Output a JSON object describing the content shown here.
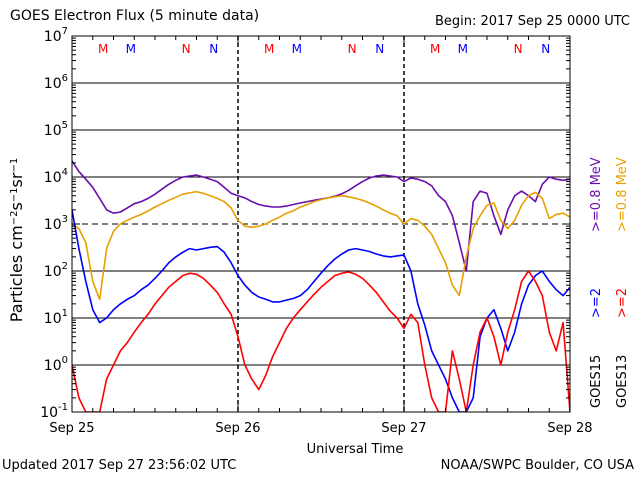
{
  "header": {
    "title": "GOES Electron Flux (5 minute data)",
    "begin": "Begin: 2017 Sep 25 0000 UTC"
  },
  "footer": {
    "updated": "Updated 2017 Sep 27 23:56:02 UTC",
    "credit": "NOAA/SWPC Boulder, CO USA"
  },
  "chart_data": {
    "type": "line",
    "title": "GOES Electron Flux (5 minute data)",
    "xlabel": "Universal Time",
    "ylabel": "Particles cm⁻²s⁻¹sr⁻¹",
    "yscale": "log",
    "ylim_exp": [
      -1,
      7
    ],
    "xlim_hours": [
      0,
      72
    ],
    "x_ticks": [
      {
        "hour": 0,
        "label": "Sep 25"
      },
      {
        "hour": 24,
        "label": "Sep 26"
      },
      {
        "hour": 48,
        "label": "Sep 27"
      },
      {
        "hour": 72,
        "label": "Sep 28"
      }
    ],
    "y_tick_labels": [
      "10",
      "10",
      "10",
      "10",
      "10",
      "10",
      "10",
      "10",
      "10"
    ],
    "y_tick_exponents": [
      "-1",
      "0",
      "1",
      "2",
      "3",
      "4",
      "5",
      "6",
      "7"
    ],
    "grid": "horizontal decades",
    "dashed_level_exp": 3,
    "markers": [
      {
        "hour": 4.5,
        "label": "M",
        "color": "#ff0000"
      },
      {
        "hour": 8.5,
        "label": "M",
        "color": "#0000ff"
      },
      {
        "hour": 16.5,
        "label": "N",
        "color": "#ff0000"
      },
      {
        "hour": 20.5,
        "label": "N",
        "color": "#0000ff"
      },
      {
        "hour": 28.5,
        "label": "M",
        "color": "#ff0000"
      },
      {
        "hour": 32.5,
        "label": "M",
        "color": "#0000ff"
      },
      {
        "hour": 40.5,
        "label": "N",
        "color": "#ff0000"
      },
      {
        "hour": 44.5,
        "label": "N",
        "color": "#0000ff"
      },
      {
        "hour": 52.5,
        "label": "M",
        "color": "#ff0000"
      },
      {
        "hour": 56.5,
        "label": "M",
        "color": "#0000ff"
      },
      {
        "hour": 64.5,
        "label": "N",
        "color": "#ff0000"
      },
      {
        "hour": 68.5,
        "label": "N",
        "color": "#0000ff"
      }
    ],
    "legend": {
      "groups": [
        {
          "label": "GOES15",
          "color": "#000000",
          "entries": [
            {
              "label": ">=0.8 MeV",
              "color": "#6a0dad"
            },
            {
              "label": ">=2",
              "color": "#0000ff"
            }
          ]
        },
        {
          "label": "GOES13",
          "color": "#000000",
          "entries": [
            {
              "label": ">=0.8 MeV",
              "color": "#e8a000"
            },
            {
              "label": ">=2",
              "color": "#ff0000"
            }
          ]
        }
      ]
    },
    "series": [
      {
        "key": "goes15_08",
        "color": "#6a0dad",
        "x": [
          0,
          1,
          2,
          3,
          4,
          5,
          6,
          7,
          8,
          9,
          10,
          11,
          12,
          13,
          14,
          15,
          16,
          17,
          18,
          19,
          20,
          21,
          22,
          23,
          24,
          25,
          26,
          27,
          28,
          29,
          30,
          31,
          32,
          33,
          34,
          35,
          36,
          37,
          38,
          39,
          40,
          41,
          42,
          43,
          44,
          45,
          46,
          47,
          48,
          49,
          50,
          51,
          52,
          53,
          54,
          55,
          56,
          57,
          58,
          59,
          60,
          61,
          62,
          63,
          64,
          65,
          66,
          67,
          68,
          69,
          70,
          71,
          72
        ],
        "y": [
          22000,
          13000,
          9000,
          6000,
          3500,
          2000,
          1700,
          1800,
          2200,
          2700,
          3000,
          3500,
          4300,
          5500,
          7000,
          8500,
          10000,
          10500,
          11000,
          10000,
          9000,
          8000,
          6000,
          4500,
          4000,
          3600,
          3000,
          2600,
          2400,
          2300,
          2300,
          2400,
          2600,
          2800,
          3000,
          3200,
          3400,
          3600,
          3900,
          4400,
          5200,
          6500,
          8000,
          9500,
          10500,
          11000,
          10500,
          10000,
          8000,
          9500,
          9000,
          8000,
          6500,
          4000,
          3000,
          1500,
          400,
          100,
          3000,
          5000,
          4500,
          1500,
          600,
          2000,
          4000,
          5000,
          4000,
          3000,
          7000,
          10000,
          9000,
          8500,
          9000
        ]
      },
      {
        "key": "goes13_08",
        "color": "#e8a000",
        "x": [
          0,
          1,
          2,
          3,
          4,
          5,
          6,
          7,
          8,
          9,
          10,
          11,
          12,
          13,
          14,
          15,
          16,
          17,
          18,
          19,
          20,
          21,
          22,
          23,
          24,
          25,
          26,
          27,
          28,
          29,
          30,
          31,
          32,
          33,
          34,
          35,
          36,
          37,
          38,
          39,
          40,
          41,
          42,
          43,
          44,
          45,
          46,
          47,
          48,
          49,
          50,
          51,
          52,
          53,
          54,
          55,
          56,
          57,
          58,
          59,
          60,
          61,
          62,
          63,
          64,
          65,
          66,
          67,
          68,
          69,
          70,
          71,
          72
        ],
        "y": [
          1000,
          800,
          400,
          60,
          25,
          300,
          700,
          1000,
          1200,
          1400,
          1600,
          1900,
          2300,
          2700,
          3200,
          3700,
          4300,
          4600,
          4900,
          4500,
          4000,
          3500,
          3000,
          2200,
          1200,
          900,
          850,
          900,
          1000,
          1200,
          1400,
          1700,
          1900,
          2300,
          2600,
          3000,
          3300,
          3600,
          3800,
          4000,
          3800,
          3500,
          3200,
          2800,
          2400,
          2000,
          1700,
          1500,
          1000,
          1300,
          1200,
          900,
          600,
          300,
          150,
          50,
          30,
          200,
          800,
          1500,
          2500,
          2800,
          1200,
          800,
          1200,
          2500,
          4000,
          4700,
          3500,
          1300,
          1600,
          1700,
          1400
        ]
      },
      {
        "key": "goes15_2",
        "color": "#0000ff",
        "x": [
          0,
          1,
          2,
          3,
          4,
          5,
          6,
          7,
          8,
          9,
          10,
          11,
          12,
          13,
          14,
          15,
          16,
          17,
          18,
          19,
          20,
          21,
          22,
          23,
          24,
          25,
          26,
          27,
          28,
          29,
          30,
          31,
          32,
          33,
          34,
          35,
          36,
          37,
          38,
          39,
          40,
          41,
          42,
          43,
          44,
          45,
          46,
          47,
          48,
          49,
          50,
          51,
          52,
          53,
          54,
          55,
          56,
          57,
          58,
          59,
          60,
          61,
          62,
          63,
          64,
          65,
          66,
          67,
          68,
          69,
          70,
          71,
          72
        ],
        "y": [
          2000,
          300,
          60,
          15,
          8,
          10,
          15,
          20,
          25,
          30,
          40,
          50,
          70,
          100,
          150,
          200,
          250,
          300,
          280,
          300,
          320,
          330,
          250,
          150,
          80,
          50,
          35,
          28,
          25,
          22,
          22,
          24,
          26,
          30,
          40,
          60,
          90,
          130,
          180,
          230,
          280,
          300,
          280,
          260,
          230,
          210,
          200,
          210,
          220,
          100,
          20,
          7,
          2,
          1,
          0.5,
          0.2,
          0.1,
          0.1,
          0.2,
          4,
          10,
          15,
          6,
          2,
          5,
          20,
          50,
          80,
          100,
          60,
          40,
          30,
          45
        ]
      },
      {
        "key": "goes13_2",
        "color": "#ff0000",
        "x": [
          0,
          1,
          2,
          3,
          4,
          5,
          6,
          7,
          8,
          9,
          10,
          11,
          12,
          13,
          14,
          15,
          16,
          17,
          18,
          19,
          20,
          21,
          22,
          23,
          24,
          25,
          26,
          27,
          28,
          29,
          30,
          31,
          32,
          33,
          34,
          35,
          36,
          37,
          38,
          39,
          40,
          41,
          42,
          43,
          44,
          45,
          46,
          47,
          48,
          49,
          50,
          51,
          52,
          53,
          54,
          55,
          56,
          57,
          58,
          59,
          60,
          61,
          62,
          63,
          64,
          65,
          66,
          67,
          68,
          69,
          70,
          71,
          72
        ],
        "y": [
          1,
          0.2,
          0.1,
          0.1,
          0.1,
          0.5,
          1,
          2,
          3,
          5,
          8,
          12,
          20,
          30,
          45,
          60,
          80,
          90,
          85,
          70,
          50,
          35,
          20,
          12,
          4,
          1,
          0.5,
          0.3,
          0.6,
          1.5,
          3,
          6,
          10,
          15,
          22,
          32,
          45,
          60,
          80,
          90,
          95,
          85,
          70,
          50,
          35,
          22,
          14,
          10,
          6,
          12,
          8,
          1,
          0.2,
          0.1,
          0.1,
          2,
          0.5,
          0.1,
          1,
          5,
          10,
          4,
          1,
          5,
          15,
          60,
          100,
          60,
          30,
          5,
          2,
          8,
          0.1
        ]
      }
    ]
  }
}
